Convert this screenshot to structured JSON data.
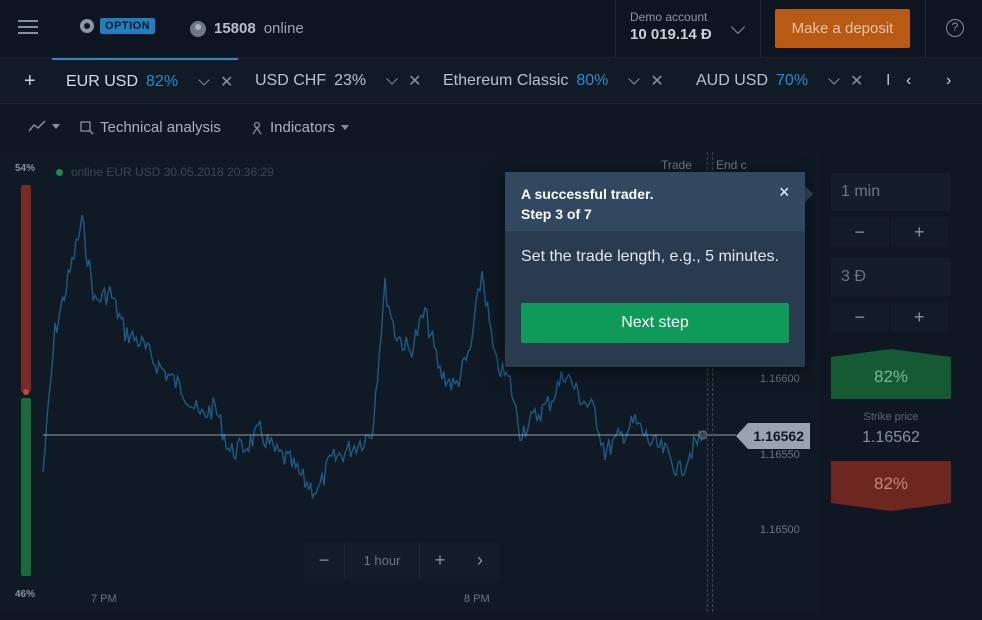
{
  "header": {
    "brand_badge": "OPTION",
    "online_count": "15808",
    "online_label": "online",
    "account_label": "Demo account",
    "account_balance": "10 019.14 Đ",
    "deposit_label": "Make a deposit",
    "help_label": "?"
  },
  "tabs": [
    {
      "name": "EUR USD",
      "pct": "82%"
    },
    {
      "name": "USD CHF",
      "pct": "23%"
    },
    {
      "name": "Ethereum Classic",
      "pct": "80%"
    },
    {
      "name": "AUD USD",
      "pct": "70%"
    },
    {
      "name": "I",
      "pct": ""
    }
  ],
  "toolbar": {
    "technical_analysis": "Technical analysis",
    "indicators": "Indicators"
  },
  "chart": {
    "sentiment_top": "54%",
    "sentiment_bottom": "46%",
    "asset_info": "online EUR USD 30.05.2018 20:36:29",
    "col_trade": "Trade",
    "col_end": "End c",
    "current_price": "1.16562",
    "price_ticks": [
      "1.16600",
      "1.16550",
      "1.16500"
    ],
    "time_labels": [
      "7 PM",
      "8 PM"
    ],
    "zoom_value": "1 hour",
    "zoom_minus": "−",
    "zoom_plus": "+",
    "zoom_next": "›"
  },
  "trade_panel": {
    "duration": "1 min",
    "amount": "3 Đ",
    "step_minus": "−",
    "step_plus": "+",
    "call_pct": "82%",
    "put_pct": "82%",
    "strike_label": "Strike price",
    "strike_value": "1.16562"
  },
  "tutorial": {
    "title_line1": "A successful trader.",
    "title_line2": "Step 3 of 7",
    "body": "Set the trade length, e.g., 5 minutes.",
    "button": "Next step",
    "close": "×"
  },
  "colors": {
    "accent": "#2a8ad1",
    "deposit": "#b85a14",
    "call": "#155a32",
    "put": "#6e2620",
    "next_step": "#0f9a5a",
    "chart_line": "#1e5a85"
  }
}
